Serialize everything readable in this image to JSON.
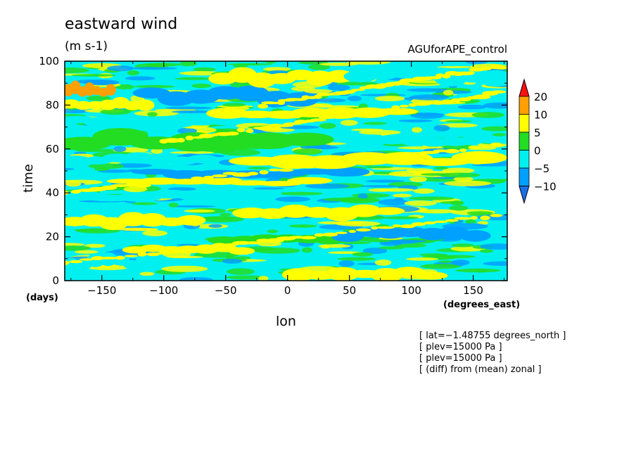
{
  "chart_data": {
    "type": "heatmap",
    "title": "eastward wind",
    "units": "(m s-1)",
    "run_name": "AGUforAPE_control",
    "xlabel": "lon",
    "ylabel": "time",
    "x_unit": "(degrees_east)",
    "y_unit": "(days)",
    "xlim": [
      -180,
      177.5
    ],
    "ylim": [
      0,
      100
    ],
    "x_ticks": [
      -150,
      -100,
      -50,
      0,
      50,
      100,
      150
    ],
    "y_ticks": [
      0,
      20,
      40,
      60,
      80,
      100
    ],
    "colorbar": {
      "levels": [
        -10,
        -5,
        0,
        5,
        10,
        20
      ],
      "labels": [
        "20",
        "10",
        "5",
        "0",
        "−5",
        "−10"
      ],
      "colors": [
        "#1a6fe8",
        "#00a0ff",
        "#00f0f0",
        "#22dd22",
        "#ffff00",
        "#ffa000",
        "#ff1010"
      ]
    },
    "bands": [
      {
        "lon_start": 0,
        "lon_end": 125,
        "t_start": 0,
        "t_end": 6,
        "value": 7
      },
      {
        "lon_start": -180,
        "lon_end": -110,
        "t_start": 5,
        "t_end": 12,
        "value": -3
      },
      {
        "lon_start": -130,
        "lon_end": -30,
        "t_start": 12,
        "t_end": 16,
        "value": 6
      },
      {
        "lon_start": -60,
        "lon_end": 60,
        "t_start": 17,
        "t_end": 21,
        "value": 3
      },
      {
        "lon_start": 40,
        "lon_end": 160,
        "t_start": 18,
        "t_end": 24,
        "value": -6
      },
      {
        "lon_start": -180,
        "lon_end": -70,
        "t_start": 24,
        "t_end": 30,
        "value": 7
      },
      {
        "lon_start": -40,
        "lon_end": 90,
        "t_start": 28,
        "t_end": 34,
        "value": 7
      },
      {
        "lon_start": -180,
        "lon_end": -10,
        "t_start": 36,
        "t_end": 41,
        "value": -4
      },
      {
        "lon_start": -140,
        "lon_end": 30,
        "t_start": 43,
        "t_end": 47,
        "value": 6
      },
      {
        "lon_start": -120,
        "lon_end": 60,
        "t_start": 47,
        "t_end": 51,
        "value": -7
      },
      {
        "lon_start": -40,
        "lon_end": 170,
        "t_start": 52,
        "t_end": 58,
        "value": 8
      },
      {
        "lon_start": -180,
        "lon_end": -60,
        "t_start": 53,
        "t_end": 58,
        "value": -4
      },
      {
        "lon_start": -180,
        "lon_end": 30,
        "t_start": 60,
        "t_end": 68,
        "value": 3
      },
      {
        "lon_start": 60,
        "lon_end": 177.5,
        "t_start": 61,
        "t_end": 66,
        "value": -4
      },
      {
        "lon_start": -180,
        "lon_end": -40,
        "t_start": 70,
        "t_end": 75,
        "value": -5
      },
      {
        "lon_start": -60,
        "lon_end": 100,
        "t_start": 74,
        "t_end": 79,
        "value": 7
      },
      {
        "lon_start": -180,
        "lon_end": -110,
        "t_start": 78,
        "t_end": 83,
        "value": 7
      },
      {
        "lon_start": -120,
        "lon_end": 20,
        "t_start": 80,
        "t_end": 88,
        "value": -8
      },
      {
        "lon_start": -180,
        "lon_end": -140,
        "t_start": 84,
        "t_end": 90,
        "value": 11
      },
      {
        "lon_start": -60,
        "lon_end": 50,
        "t_start": 89,
        "t_end": 96,
        "value": 8
      },
      {
        "lon_start": 50,
        "lon_end": 177.5,
        "t_start": 90,
        "t_end": 97,
        "value": -5
      }
    ],
    "streaks": [
      {
        "lon_start": -180,
        "lon_end": 177.5,
        "t_start": 40,
        "t_end": 62,
        "value": 7
      },
      {
        "lon_start": -100,
        "lon_end": 177.5,
        "t_start": 63,
        "t_end": 86,
        "value": 8
      },
      {
        "lon_start": -20,
        "lon_end": 177.5,
        "t_start": 80,
        "t_end": 98,
        "value": 7
      },
      {
        "lon_start": -180,
        "lon_end": 177.5,
        "t_start": 8,
        "t_end": 30,
        "value": 6
      }
    ]
  },
  "notes": [
    "[ lat=−1.48755 degrees_north ]",
    "[ plev=15000 Pa ]",
    "[ plev=15000 Pa ]",
    "[ (diff) from (mean) zonal ]"
  ]
}
